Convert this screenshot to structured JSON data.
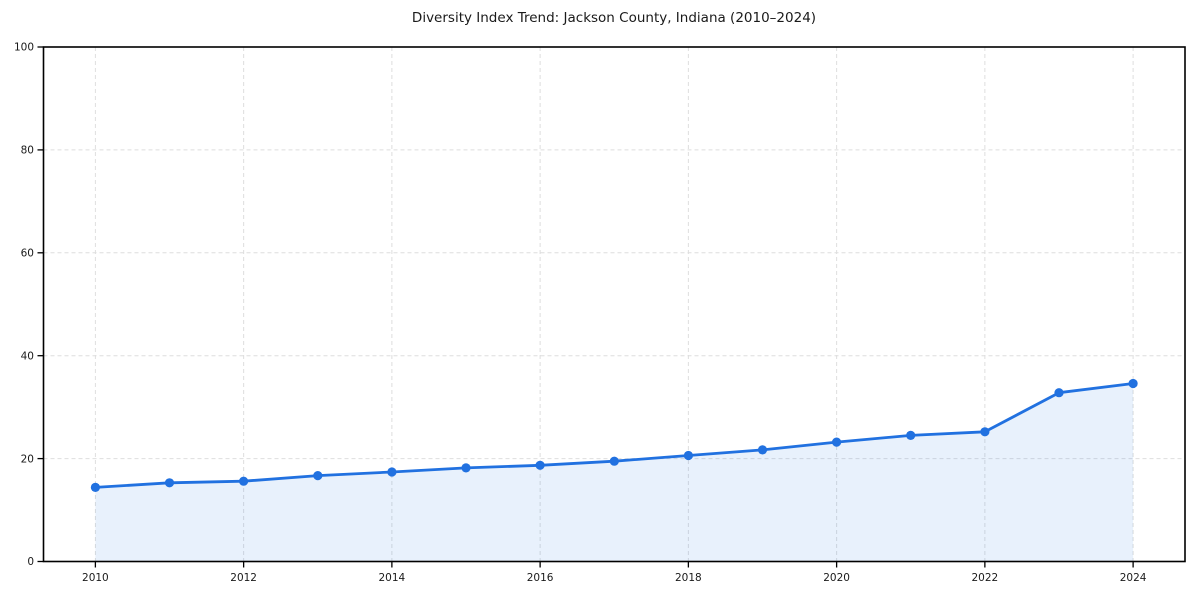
{
  "page": {
    "background_color": "#ffffff"
  },
  "chart_data": {
    "type": "line",
    "title": "Diversity Index Trend: Jackson County, Indiana (2010–2024)",
    "x": [
      2010,
      2011,
      2012,
      2013,
      2014,
      2015,
      2016,
      2017,
      2018,
      2019,
      2020,
      2021,
      2022,
      2023,
      2024
    ],
    "series": [
      {
        "name": "Diversity Index",
        "values": [
          14.4,
          15.3,
          15.6,
          16.7,
          17.4,
          18.2,
          18.7,
          19.5,
          20.6,
          21.7,
          23.2,
          24.5,
          25.2,
          32.8,
          34.6
        ]
      }
    ],
    "xlabel": "",
    "ylabel": "",
    "xticks": [
      2010,
      2012,
      2014,
      2016,
      2018,
      2020,
      2022,
      2024
    ],
    "yticks": [
      0,
      20,
      40,
      60,
      80,
      100
    ],
    "ylim": [
      0,
      100
    ],
    "xlim": [
      2009.3,
      2024.7
    ],
    "grid": true,
    "grid_style": "dashed",
    "legend": false,
    "markers": true,
    "area_fill": true,
    "colors": {
      "line": "#2171e0",
      "marker": "#2171e0",
      "fill": "#2171e0",
      "fill_opacity": 0.1,
      "grid": "#dedede",
      "axis": "#000000",
      "text": "#1a1a1a",
      "background": "#ffffff"
    }
  }
}
